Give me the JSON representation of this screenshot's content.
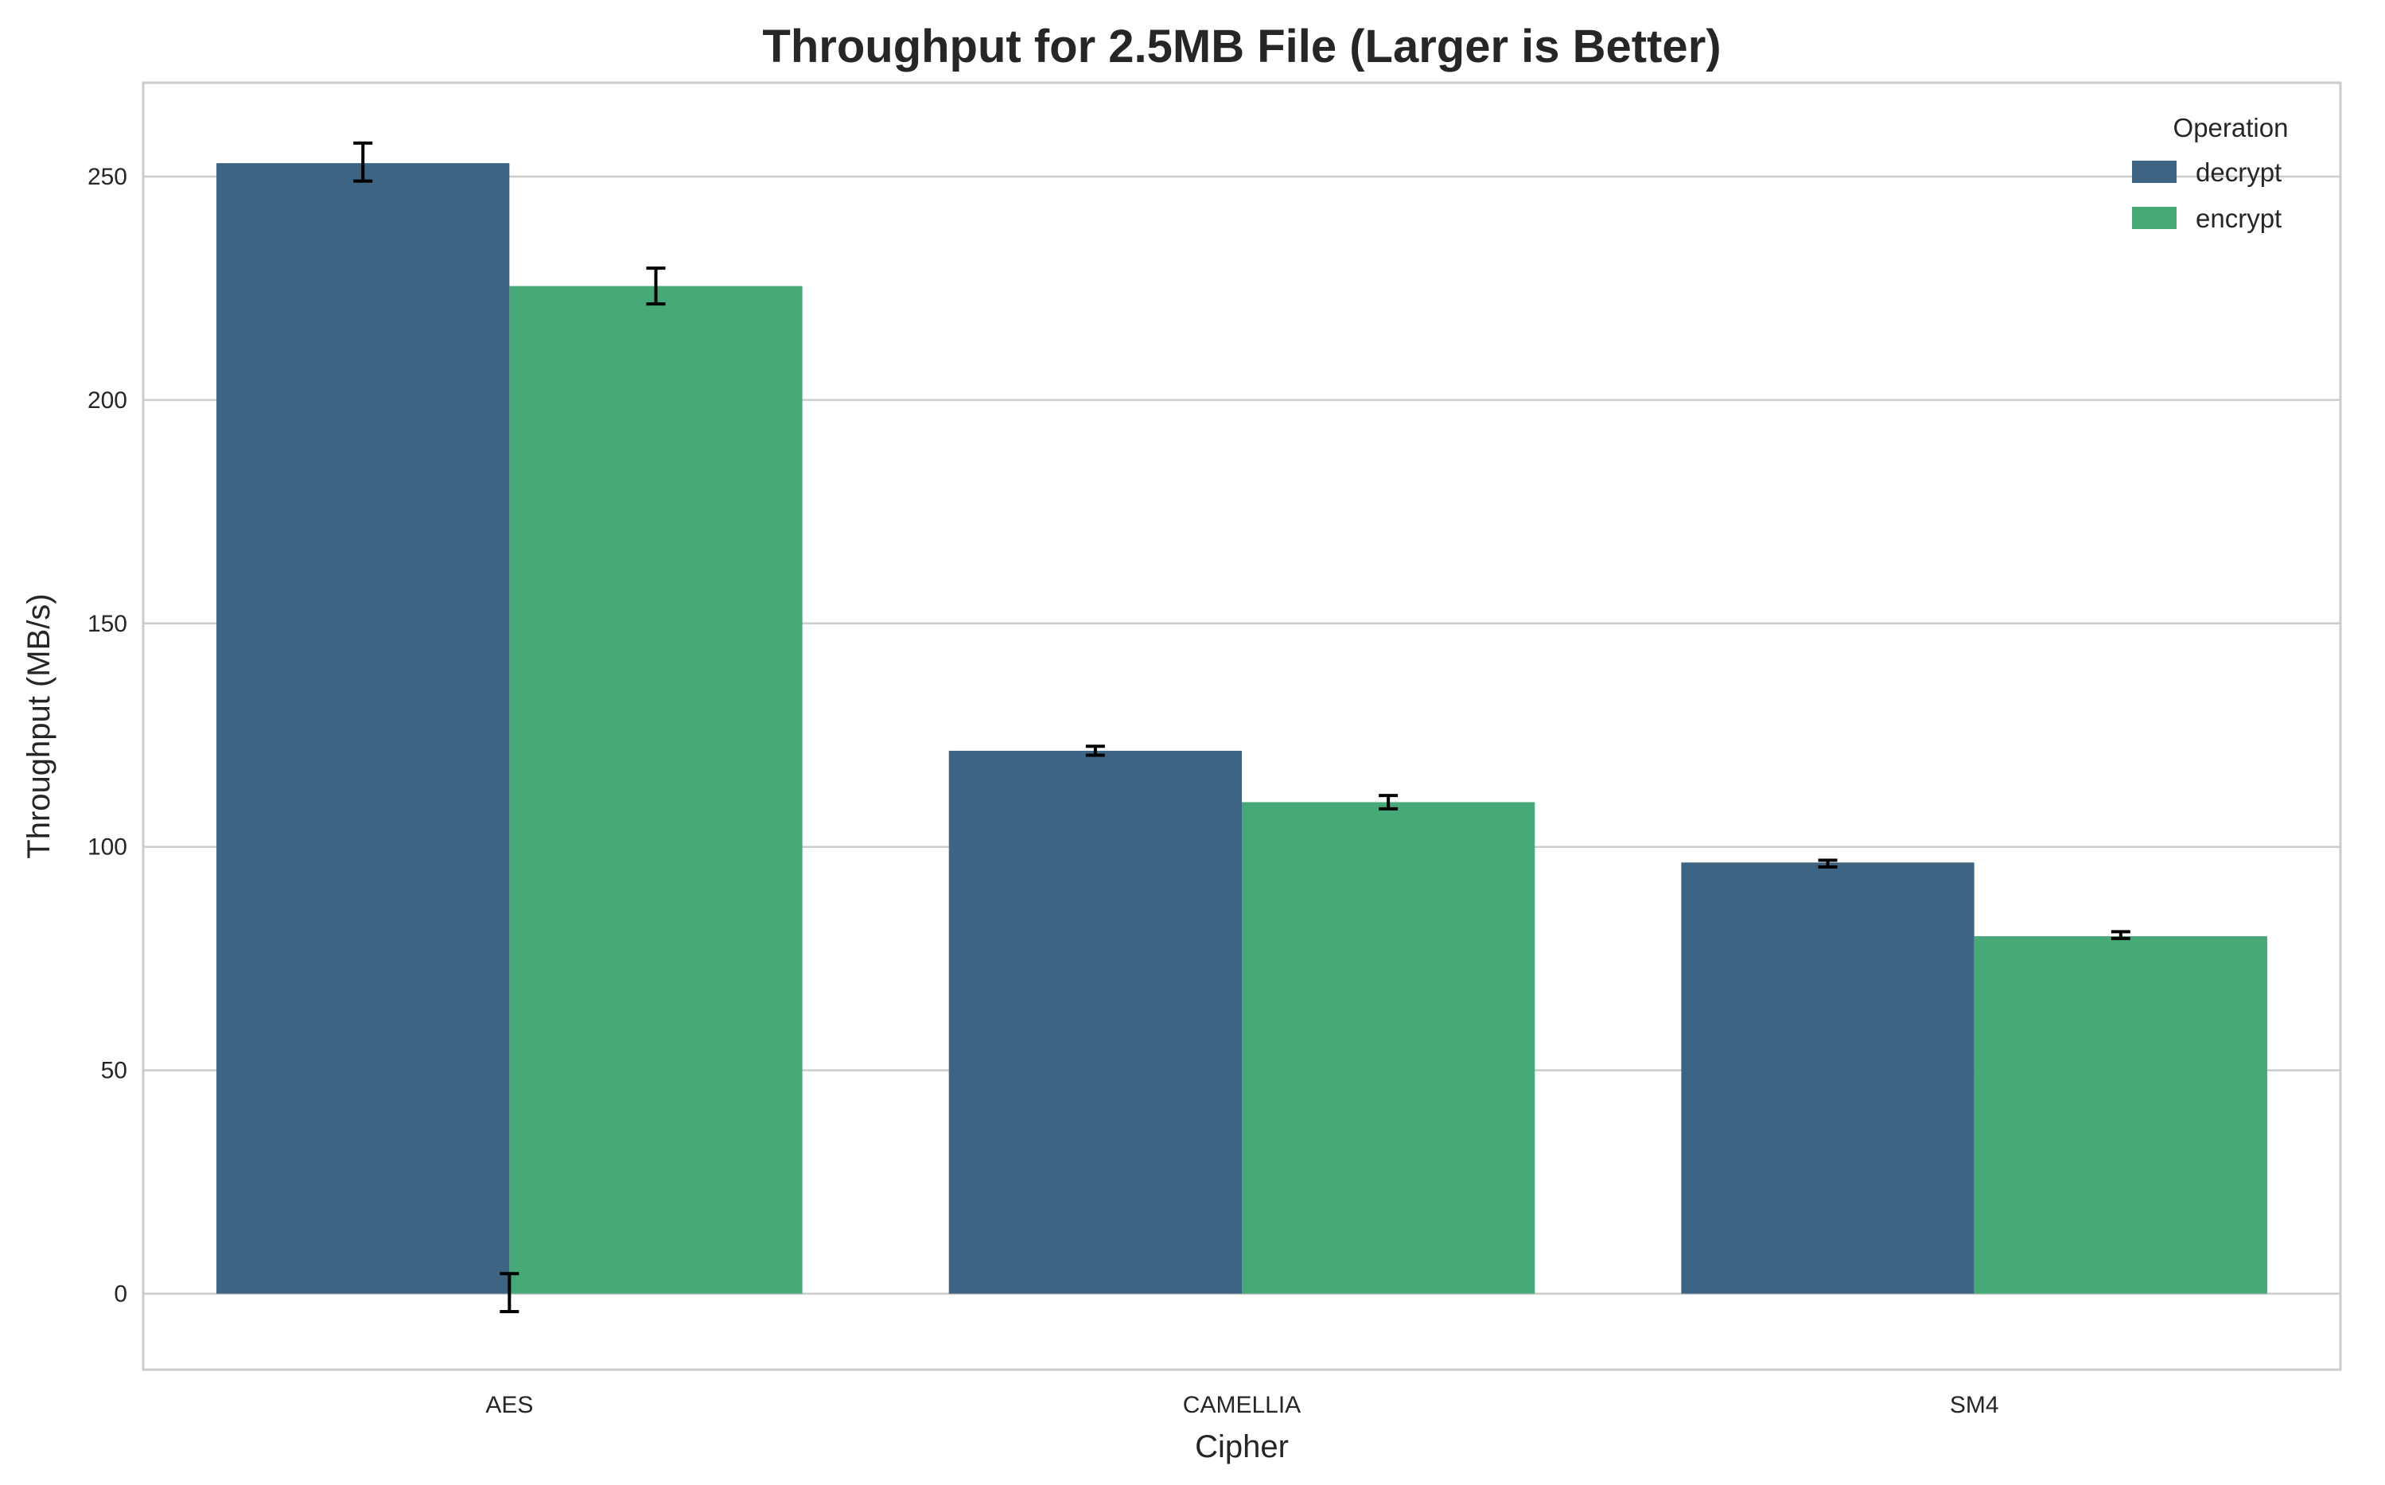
{
  "chart_data": {
    "type": "bar",
    "title": "Throughput for 2.5MB File (Larger is Better)",
    "xlabel": "Cipher",
    "ylabel": "Throughput (MB/s)",
    "categories": [
      "AES",
      "CAMELLIA",
      "SM4"
    ],
    "ylim": [
      -17,
      271
    ],
    "yticks": [
      0,
      50,
      100,
      150,
      200,
      250
    ],
    "grid": true,
    "legend": {
      "title": "Operation",
      "placement": "top-right"
    },
    "series": [
      {
        "name": "decrypt",
        "color": "#3e6483",
        "values": [
          253,
          121.5,
          96.5
        ],
        "error": [
          [
            249,
            257.5
          ],
          [
            120.5,
            122.5
          ],
          [
            95.5,
            97
          ]
        ],
        "extra_error": {
          "category": "AES",
          "range": [
            -4,
            4.5
          ]
        }
      },
      {
        "name": "encrypt",
        "color": "#47a878",
        "values": [
          225.5,
          110,
          80
        ],
        "error": [
          [
            221.5,
            229.5
          ],
          [
            108.5,
            111.5
          ],
          [
            79.5,
            81
          ]
        ]
      }
    ]
  }
}
